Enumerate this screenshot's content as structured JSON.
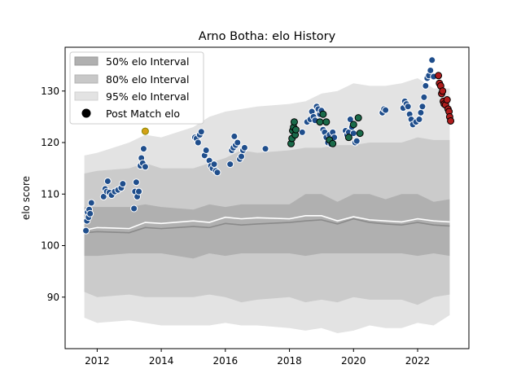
{
  "chart_data": {
    "type": "scatter",
    "title": "Arno Botha: elo History",
    "xlabel": "",
    "ylabel": "elo score",
    "xlim": [
      2011.0,
      2023.6
    ],
    "ylim": [
      80,
      138.5
    ],
    "x_ticks": [
      2012,
      2014,
      2016,
      2018,
      2020,
      2022
    ],
    "y_ticks": [
      90,
      100,
      110,
      120,
      130
    ],
    "grid": false,
    "legend_position": "top-left",
    "legend": [
      {
        "label": "50% elo Interval",
        "kind": "band",
        "color": "#b0b0b0"
      },
      {
        "label": "80% elo Interval",
        "kind": "band",
        "color": "#c8c8c8"
      },
      {
        "label": "95% elo Interval",
        "kind": "band",
        "color": "#e3e3e3"
      },
      {
        "label": "Post Match elo",
        "kind": "marker",
        "color": "#000000"
      }
    ],
    "colors": {
      "band_50": "#b0b0b0",
      "band_80": "#cbcbcb",
      "band_95": "#e3e3e3",
      "median_line": "#8a8a8a",
      "mean_line": "#ffffff",
      "default_point": "#1f4e8c",
      "highlight_point": "#1a6b4a",
      "recent_point": "#b01c1c",
      "peak_point": "#9acd32"
    },
    "intervals": {
      "x": [
        2011.6,
        2012.0,
        2013.0,
        2013.5,
        2014.0,
        2015.0,
        2015.5,
        2016.0,
        2016.5,
        2017.0,
        2018.0,
        2018.5,
        2019.0,
        2019.5,
        2020.0,
        2020.5,
        2021.0,
        2021.5,
        2022.0,
        2022.5,
        2023.0
      ],
      "median": [
        102.5,
        102.7,
        102.5,
        103.5,
        103.3,
        103.7,
        103.5,
        104.3,
        104.0,
        104.2,
        104.5,
        104.8,
        105.0,
        104.2,
        105.2,
        104.5,
        104.2,
        104.0,
        104.5,
        104.0,
        103.8
      ],
      "mean": [
        103.0,
        103.5,
        103.3,
        104.5,
        104.3,
        104.8,
        104.5,
        105.5,
        105.2,
        105.4,
        105.2,
        105.8,
        105.8,
        104.8,
        105.6,
        105.0,
        104.8,
        104.6,
        105.2,
        104.8,
        104.6
      ],
      "q50_lo": [
        98.0,
        98.0,
        98.5,
        98.5,
        98.5,
        97.5,
        98.5,
        98.0,
        98.5,
        98.5,
        98.5,
        98.0,
        98.5,
        98.5,
        98.5,
        98.5,
        98.5,
        98.5,
        98.0,
        98.5,
        98.0
      ],
      "q50_hi": [
        107.5,
        107.5,
        107.5,
        108.0,
        107.5,
        107.0,
        108.0,
        107.5,
        108.0,
        108.0,
        108.0,
        110.0,
        110.0,
        108.5,
        110.0,
        110.0,
        109.0,
        110.0,
        110.0,
        108.5,
        109.0
      ],
      "q80_lo": [
        91.0,
        90.0,
        90.5,
        90.0,
        90.0,
        90.0,
        90.5,
        90.0,
        89.0,
        89.5,
        90.0,
        89.0,
        89.5,
        89.0,
        90.0,
        89.5,
        89.5,
        89.5,
        88.5,
        90.0,
        90.5
      ],
      "q80_hi": [
        114.0,
        114.5,
        115.0,
        116.0,
        115.0,
        115.0,
        116.0,
        117.0,
        118.5,
        118.0,
        118.5,
        119.0,
        119.0,
        119.5,
        119.5,
        120.0,
        120.0,
        120.0,
        121.0,
        120.5,
        120.5
      ],
      "q95_lo": [
        86.0,
        85.0,
        85.5,
        85.0,
        84.5,
        84.5,
        84.5,
        85.0,
        84.5,
        84.5,
        84.0,
        83.5,
        84.0,
        83.0,
        83.5,
        84.5,
        84.0,
        84.0,
        85.0,
        84.5,
        86.5
      ],
      "q95_hi": [
        117.5,
        118.0,
        120.0,
        121.5,
        121.0,
        123.0,
        125.0,
        126.0,
        126.5,
        127.0,
        127.5,
        128.0,
        129.5,
        130.0,
        131.5,
        131.0,
        131.0,
        131.5,
        132.5,
        130.5,
        130.5
      ]
    },
    "series": [
      {
        "points": [
          [
            2011.65,
            102.9
          ],
          [
            2011.68,
            104.8
          ],
          [
            2011.7,
            106.5
          ],
          [
            2011.73,
            105.5
          ],
          [
            2011.75,
            107.0
          ],
          [
            2011.78,
            106.2
          ],
          [
            2011.82,
            108.3
          ],
          [
            2012.2,
            109.5
          ],
          [
            2012.25,
            111.0
          ],
          [
            2012.3,
            110.5
          ],
          [
            2012.33,
            112.5
          ],
          [
            2012.38,
            110.3
          ],
          [
            2012.45,
            109.8
          ],
          [
            2012.55,
            110.5
          ],
          [
            2012.65,
            110.8
          ],
          [
            2012.75,
            111.2
          ],
          [
            2012.8,
            112.0
          ],
          [
            2013.15,
            107.2
          ],
          [
            2013.18,
            110.5
          ],
          [
            2013.22,
            112.3
          ],
          [
            2013.25,
            109.5
          ],
          [
            2013.3,
            110.5
          ],
          [
            2013.35,
            115.5
          ],
          [
            2013.38,
            117.0
          ],
          [
            2013.42,
            116.0
          ],
          [
            2013.45,
            118.8
          ],
          [
            2013.5,
            115.3
          ],
          [
            2015.05,
            121.0
          ],
          [
            2015.1,
            120.8
          ],
          [
            2015.15,
            120.0
          ],
          [
            2015.2,
            121.5
          ],
          [
            2015.25,
            122.1
          ],
          [
            2015.35,
            117.5
          ],
          [
            2015.4,
            118.5
          ],
          [
            2015.5,
            116.5
          ],
          [
            2015.55,
            115.5
          ],
          [
            2015.6,
            115.0
          ],
          [
            2015.65,
            115.8
          ],
          [
            2015.7,
            114.5
          ],
          [
            2015.75,
            114.2
          ],
          [
            2016.15,
            115.8
          ],
          [
            2016.2,
            118.5
          ],
          [
            2016.25,
            119.0
          ],
          [
            2016.28,
            121.2
          ],
          [
            2016.32,
            119.5
          ],
          [
            2016.38,
            120.0
          ],
          [
            2016.45,
            116.8
          ],
          [
            2016.5,
            117.3
          ],
          [
            2016.55,
            118.5
          ],
          [
            2016.6,
            119.0
          ],
          [
            2017.25,
            118.8
          ],
          [
            2018.4,
            122.0
          ],
          [
            2018.55,
            124.0
          ],
          [
            2018.65,
            124.5
          ],
          [
            2018.7,
            126.0
          ],
          [
            2018.75,
            125.0
          ],
          [
            2018.8,
            124.3
          ],
          [
            2018.85,
            127.0
          ],
          [
            2018.9,
            126.5
          ],
          [
            2018.95,
            125.5
          ],
          [
            2019.0,
            126.2
          ],
          [
            2019.05,
            122.5
          ],
          [
            2019.1,
            122.0
          ],
          [
            2019.15,
            121.0
          ],
          [
            2019.2,
            120.0
          ],
          [
            2019.25,
            121.5
          ],
          [
            2019.3,
            119.7
          ],
          [
            2019.35,
            122.0
          ],
          [
            2019.4,
            121.0
          ],
          [
            2019.75,
            122.3
          ],
          [
            2019.8,
            121.5
          ],
          [
            2019.85,
            122.0
          ],
          [
            2019.9,
            124.5
          ],
          [
            2019.95,
            123.0
          ],
          [
            2020.0,
            121.8
          ],
          [
            2020.05,
            120.0
          ],
          [
            2020.1,
            120.3
          ],
          [
            2020.9,
            125.8
          ],
          [
            2020.95,
            126.5
          ],
          [
            2021.0,
            126.3
          ],
          [
            2021.55,
            126.7
          ],
          [
            2021.6,
            128.0
          ],
          [
            2021.65,
            127.5
          ],
          [
            2021.7,
            127.0
          ],
          [
            2021.75,
            125.5
          ],
          [
            2021.8,
            124.5
          ],
          [
            2021.85,
            123.5
          ],
          [
            2021.95,
            124.0
          ],
          [
            2022.05,
            124.5
          ],
          [
            2022.1,
            125.8
          ],
          [
            2022.15,
            127.0
          ],
          [
            2022.2,
            128.8
          ],
          [
            2022.25,
            131.0
          ],
          [
            2022.3,
            132.5
          ],
          [
            2022.35,
            133.0
          ],
          [
            2022.4,
            134.0
          ],
          [
            2022.45,
            136.0
          ],
          [
            2022.5,
            132.8
          ]
        ]
      },
      {
        "points": [
          [
            2018.05,
            119.8
          ],
          [
            2018.08,
            120.8
          ],
          [
            2018.1,
            122.3
          ],
          [
            2018.13,
            123.0
          ],
          [
            2018.15,
            124.0
          ],
          [
            2018.18,
            121.5
          ],
          [
            2018.2,
            122.5
          ],
          [
            2018.95,
            124.0
          ],
          [
            2019.05,
            125.5
          ],
          [
            2019.15,
            124.0
          ],
          [
            2019.25,
            120.5
          ],
          [
            2019.35,
            119.8
          ],
          [
            2019.85,
            121.0
          ],
          [
            2020.0,
            123.5
          ],
          [
            2020.15,
            124.8
          ],
          [
            2020.2,
            121.8
          ]
        ]
      },
      {
        "points": [
          [
            2022.65,
            133.0
          ],
          [
            2022.68,
            131.5
          ],
          [
            2022.72,
            131.0
          ],
          [
            2022.75,
            129.5
          ],
          [
            2022.78,
            130.0
          ],
          [
            2022.8,
            128.0
          ],
          [
            2022.83,
            127.5
          ],
          [
            2022.87,
            127.3
          ],
          [
            2022.92,
            128.3
          ],
          [
            2022.95,
            126.5
          ],
          [
            2022.98,
            126.0
          ],
          [
            2023.0,
            125.0
          ],
          [
            2023.03,
            124.2
          ]
        ]
      },
      {
        "points": [
          [
            2013.5,
            122.2
          ]
        ]
      }
    ]
  }
}
